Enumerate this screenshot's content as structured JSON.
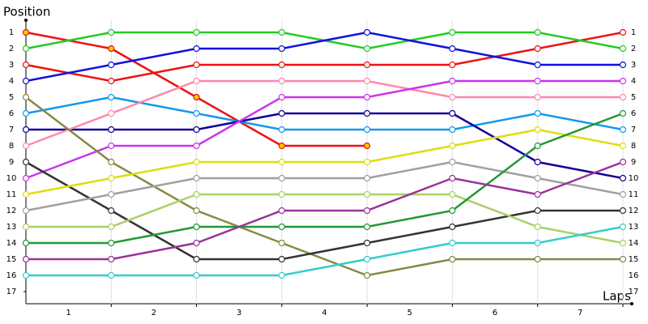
{
  "chart_data": {
    "type": "line",
    "y_title": "Position",
    "x_title": "Laps",
    "lap_labels": [
      1,
      2,
      3,
      4,
      5,
      6,
      7
    ],
    "ylim": [
      1,
      17
    ],
    "yticks": [
      1,
      2,
      3,
      4,
      5,
      6,
      7,
      8,
      9,
      10,
      11,
      12,
      13,
      14,
      15,
      16,
      17
    ],
    "grid": true,
    "series": [
      {
        "color": "#ee1111",
        "marker_fill": "#ffcc00",
        "values": [
          1,
          2,
          5,
          8,
          8,
          null,
          null,
          null
        ]
      },
      {
        "color": "#ee1111",
        "marker_fill": "#ffffff",
        "values": [
          3,
          4,
          3,
          3,
          3,
          3,
          2,
          1
        ]
      },
      {
        "color": "#22cc22",
        "marker_fill": "#ffffff",
        "values": [
          2,
          1,
          1,
          1,
          2,
          1,
          1,
          2
        ]
      },
      {
        "color": "#1111dd",
        "marker_fill": "#ffffff",
        "values": [
          4,
          3,
          2,
          2,
          1,
          2,
          3,
          3
        ]
      },
      {
        "color": "#1199ee",
        "marker_fill": "#ffffff",
        "values": [
          6,
          5,
          6,
          7,
          7,
          7,
          6,
          7
        ]
      },
      {
        "color": "#110099",
        "marker_fill": "#ffffff",
        "values": [
          7,
          7,
          7,
          6,
          6,
          6,
          9,
          10
        ]
      },
      {
        "color": "#ff88aa",
        "marker_fill": "#ffffff",
        "values": [
          8,
          6,
          4,
          4,
          4,
          5,
          5,
          5
        ]
      },
      {
        "color": "#cc33ee",
        "marker_fill": "#ffffff",
        "values": [
          10,
          8,
          8,
          5,
          5,
          4,
          4,
          4
        ]
      },
      {
        "color": "#888844",
        "marker_fill": "#ffffff",
        "values": [
          5,
          9,
          12,
          14,
          16,
          15,
          15,
          15
        ]
      },
      {
        "color": "#333333",
        "marker_fill": "#ffffff",
        "values": [
          9,
          12,
          15,
          15,
          14,
          13,
          12,
          12
        ]
      },
      {
        "color": "#dddd11",
        "marker_fill": "#ffffff",
        "values": [
          11,
          10,
          9,
          9,
          9,
          8,
          7,
          8
        ]
      },
      {
        "color": "#a0a0a0",
        "marker_fill": "#ffffff",
        "values": [
          12,
          11,
          10,
          10,
          10,
          9,
          10,
          11
        ]
      },
      {
        "color": "#aad066",
        "marker_fill": "#ffffff",
        "values": [
          13,
          13,
          11,
          11,
          11,
          11,
          13,
          14
        ]
      },
      {
        "color": "#229933",
        "marker_fill": "#ffffff",
        "values": [
          14,
          14,
          13,
          13,
          13,
          12,
          8,
          6
        ]
      },
      {
        "color": "#993399",
        "marker_fill": "#ffffff",
        "values": [
          15,
          15,
          14,
          12,
          12,
          10,
          11,
          9
        ]
      },
      {
        "color": "#33cccc",
        "marker_fill": "#ffffff",
        "values": [
          16,
          16,
          16,
          16,
          15,
          14,
          14,
          13
        ]
      }
    ]
  }
}
